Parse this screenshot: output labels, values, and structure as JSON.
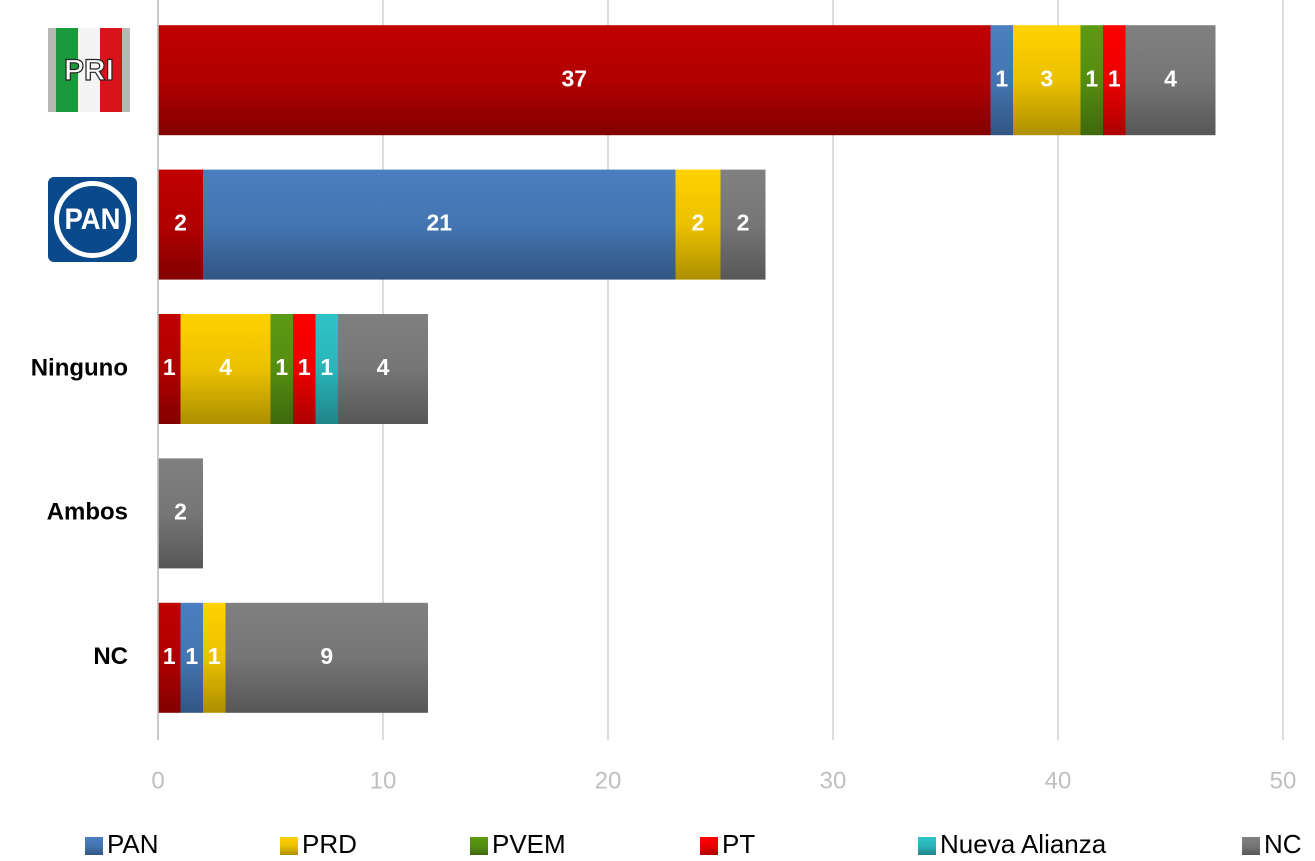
{
  "chart_data": {
    "type": "stacked-bar-horizontal",
    "categories": [
      "PRI",
      "PAN",
      "Ninguno",
      "Ambos",
      "NC"
    ],
    "series": [
      {
        "color": "#c00000",
        "values": [
          37,
          2,
          1,
          null,
          1
        ]
      },
      {
        "name": "PAN",
        "color": "#4a7fc1",
        "values": [
          1,
          21,
          null,
          null,
          1
        ]
      },
      {
        "name": "PRD",
        "color": "#ffd200",
        "values": [
          3,
          2,
          4,
          null,
          1
        ]
      },
      {
        "name": "PVEM",
        "color": "#5b9a12",
        "values": [
          1,
          null,
          1,
          null,
          null
        ]
      },
      {
        "name": "PT",
        "color": "#ff0000",
        "values": [
          1,
          null,
          1,
          null,
          null
        ]
      },
      {
        "name": "Nueva Alianza",
        "color": "#2ec4c8",
        "values": [
          null,
          null,
          1,
          null,
          null
        ]
      },
      {
        "name": "NC",
        "color": "#808080",
        "values": [
          4,
          2,
          4,
          2,
          9
        ]
      }
    ],
    "xlim": [
      0,
      50
    ],
    "xticks": [
      0,
      10,
      20,
      30,
      40,
      50
    ],
    "grid": true,
    "legend": "bottom"
  }
}
